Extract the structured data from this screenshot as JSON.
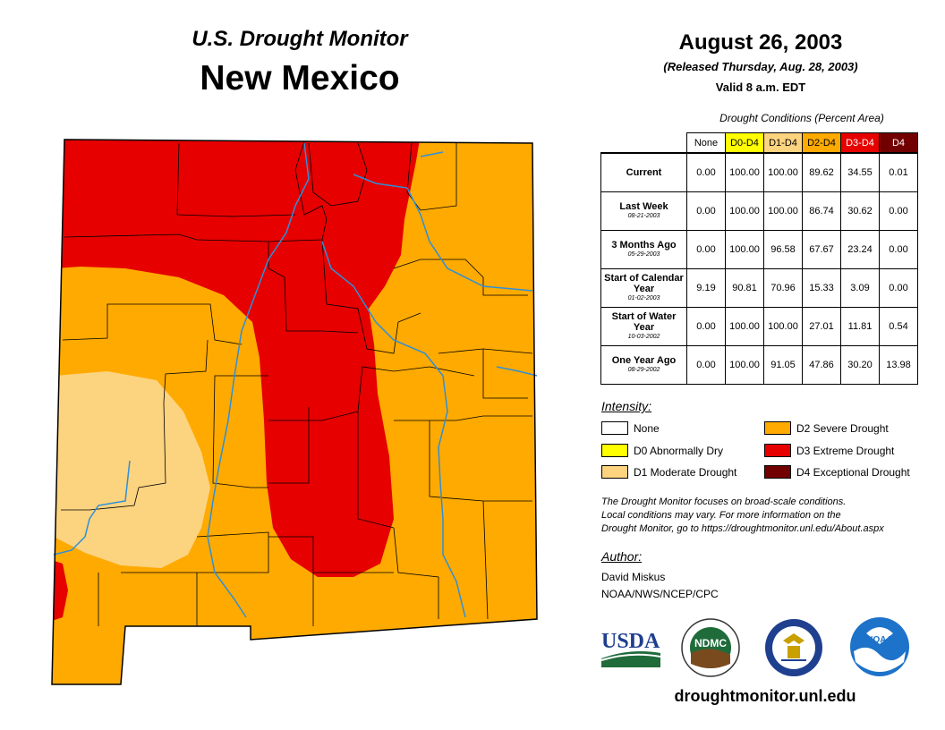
{
  "header": {
    "title": "U.S. Drought Monitor",
    "state": "New Mexico",
    "date": "August 26, 2003",
    "released": "(Released Thursday, Aug. 28, 2003)",
    "valid": "Valid 8 a.m. EDT"
  },
  "table": {
    "caption": "Drought Conditions (Percent Area)",
    "columns": [
      "None",
      "D0-D4",
      "D1-D4",
      "D2-D4",
      "D3-D4",
      "D4"
    ],
    "column_colors": [
      "#ffffff",
      "#ffff00",
      "#fcd37f",
      "#ffaa00",
      "#e60000",
      "#730000"
    ],
    "rows": [
      {
        "label": "Current",
        "date": "",
        "values": [
          "0.00",
          "100.00",
          "100.00",
          "89.62",
          "34.55",
          "0.01"
        ]
      },
      {
        "label": "Last Week",
        "date": "08-21-2003",
        "values": [
          "0.00",
          "100.00",
          "100.00",
          "86.74",
          "30.62",
          "0.00"
        ]
      },
      {
        "label": "3 Months Ago",
        "date": "05-29-2003",
        "values": [
          "0.00",
          "100.00",
          "96.58",
          "67.67",
          "23.24",
          "0.00"
        ]
      },
      {
        "label": "Start of Calendar Year",
        "date": "01-02-2003",
        "values": [
          "9.19",
          "90.81",
          "70.96",
          "15.33",
          "3.09",
          "0.00"
        ]
      },
      {
        "label": "Start of Water Year",
        "date": "10-03-2002",
        "values": [
          "0.00",
          "100.00",
          "100.00",
          "27.01",
          "11.81",
          "0.54"
        ]
      },
      {
        "label": "One Year Ago",
        "date": "08-29-2002",
        "values": [
          "0.00",
          "100.00",
          "91.05",
          "47.86",
          "30.20",
          "13.98"
        ]
      }
    ]
  },
  "legend": {
    "title": "Intensity:",
    "items": [
      {
        "label": "None",
        "color": "#ffffff"
      },
      {
        "label": "D0 Abnormally Dry",
        "color": "#ffff00"
      },
      {
        "label": "D1 Moderate Drought",
        "color": "#fcd37f"
      },
      {
        "label": "D2 Severe Drought",
        "color": "#ffaa00"
      },
      {
        "label": "D3 Extreme Drought",
        "color": "#e60000"
      },
      {
        "label": "D4 Exceptional Drought",
        "color": "#730000"
      }
    ]
  },
  "note": {
    "line1": "The Drought Monitor focuses on broad-scale conditions.",
    "line2": "Local conditions may vary. For more information on the",
    "line3": "Drought Monitor, go to https://droughtmonitor.unl.edu/About.aspx"
  },
  "author": {
    "title": "Author:",
    "name": "David Miskus",
    "org": "NOAA/NWS/NCEP/CPC"
  },
  "logos": {
    "usda": "USDA",
    "ndmc": "NDMC",
    "noaa": "NOAA",
    "commerce": "commerce-seal-icon"
  },
  "footer": {
    "url": "droughtmonitor.unl.edu"
  },
  "map": {
    "colors": {
      "d1": "#fcd37f",
      "d2": "#ffaa00",
      "d3": "#e60000",
      "river": "#2f8fd8",
      "border": "#000000"
    }
  }
}
